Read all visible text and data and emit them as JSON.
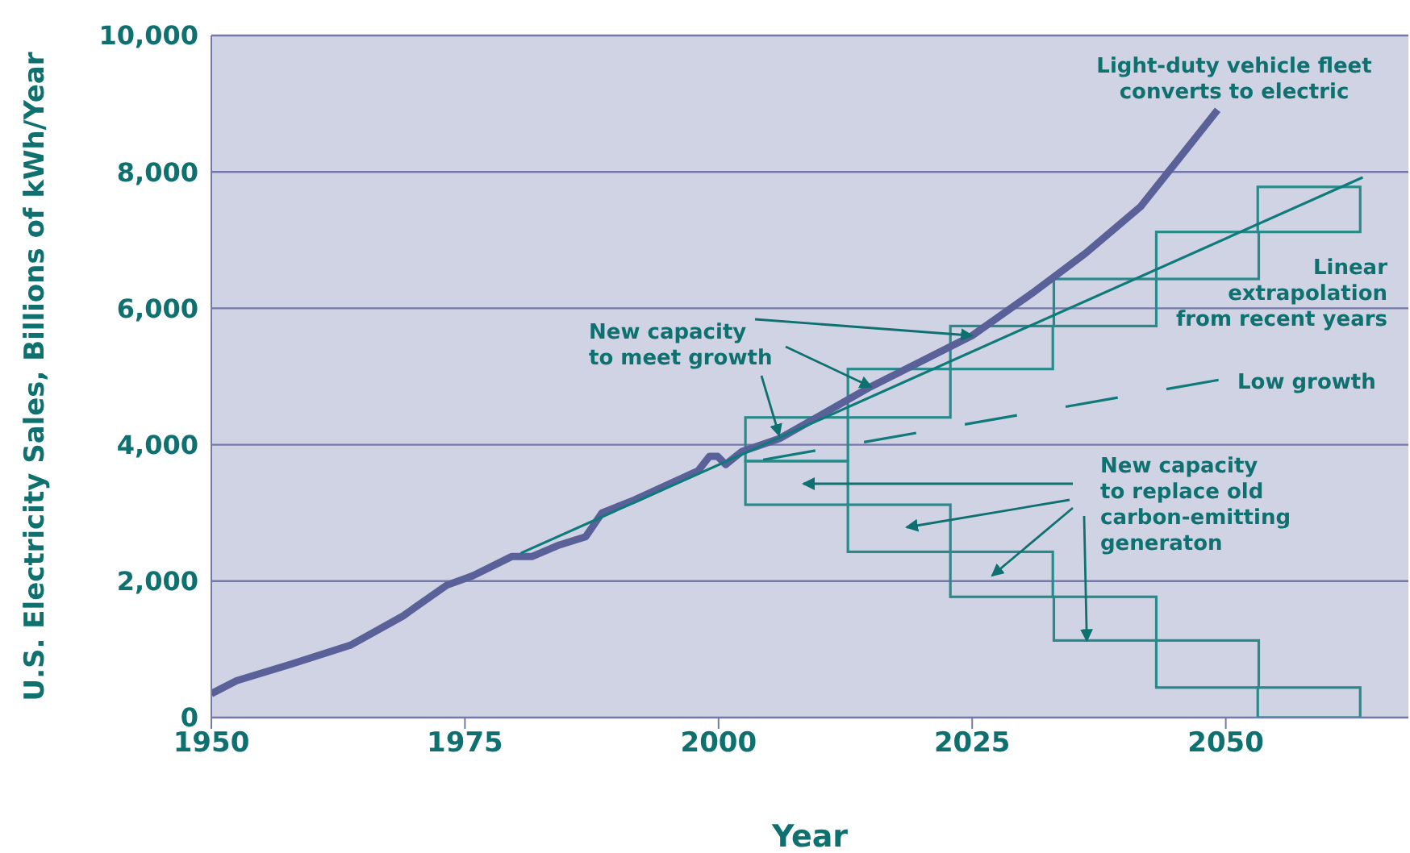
{
  "chart_data": {
    "type": "line",
    "xlabel": "Year",
    "ylabel": "U.S. Electricity Sales, Billions of kWh/Year",
    "xlim": [
      1950,
      2068
    ],
    "xticks": [
      1950,
      1975,
      2000,
      2025,
      2050
    ],
    "ylim": [
      0,
      10000
    ],
    "yticks": [
      0,
      {
        "value": 2000,
        "label": "2,000"
      },
      {
        "value": 4000,
        "label": "4,000"
      },
      {
        "value": 6000,
        "label": "6,000"
      },
      {
        "value": 8000,
        "label": "8,000"
      },
      {
        "value": 10000,
        "label": "10,000"
      }
    ],
    "grid": "y",
    "marker": "none",
    "series": [
      {
        "color": "#5a6098",
        "x": [
          1950,
          1952.5,
          1957.8,
          1963.7,
          1968.9,
          1973.2,
          1975.8,
          1979.6,
          1981.6,
          1984.3,
          1986.9,
          1988.5,
          1991.7,
          1998.0,
          1999.1,
          1999.9,
          2000.7,
          2002.3,
          2006.0,
          2015.0,
          2025.0,
          2030.9,
          2036.2,
          2041.6,
          2045.2,
          2049.2
        ],
        "values": [
          350,
          540,
          780,
          1060,
          1490,
          1940,
          2080,
          2360,
          2360,
          2530,
          2650,
          3000,
          3190,
          3620,
          3830,
          3830,
          3710,
          3900,
          4090,
          4850,
          5600,
          6220,
          6810,
          7490,
          8160,
          8910
        ]
      },
      {
        "color": "#0e7a7a",
        "x": [
          1980.5,
          2063.5
        ],
        "values": [
          2410,
          7920
        ]
      },
      {
        "color": "#0e7a7a",
        "line_style": "dashed",
        "x": [
          2004.4,
          2049.7
        ],
        "values": [
          3780,
          4960
        ]
      },
      {
        "type": "bar",
        "color": "#2a8a8a",
        "x": [
          2007.7,
          2017.8,
          2027.9,
          2038.1,
          2048.2,
          2058.2
        ],
        "base": [
          3760,
          4400,
          5110,
          5740,
          6430,
          7120
        ],
        "values": [
          640,
          710,
          630,
          690,
          690,
          660
        ]
      },
      {
        "type": "bar",
        "color": "#2a8a8a",
        "x": [
          2007.7,
          2017.8,
          2027.9,
          2038.1,
          2048.2,
          2058.2
        ],
        "base": [
          3120,
          2430,
          1770,
          1130,
          440,
          0
        ],
        "values": [
          640,
          690,
          660,
          640,
          690,
          440
        ]
      }
    ],
    "annotations": [
      "Light-duty vehicle fleet\nconverts to electric",
      "Linear\nextrapolation\nfrom recent years",
      "Low growth",
      {
        "text": "New capacity\nto meet growth",
        "x": 2025.0,
        "y": 5600
      },
      {
        "text": "New capacity\nto replace old\ncarbon-emitting\ngeneraton",
        "x": 2036.3,
        "y": 1130
      }
    ]
  }
}
